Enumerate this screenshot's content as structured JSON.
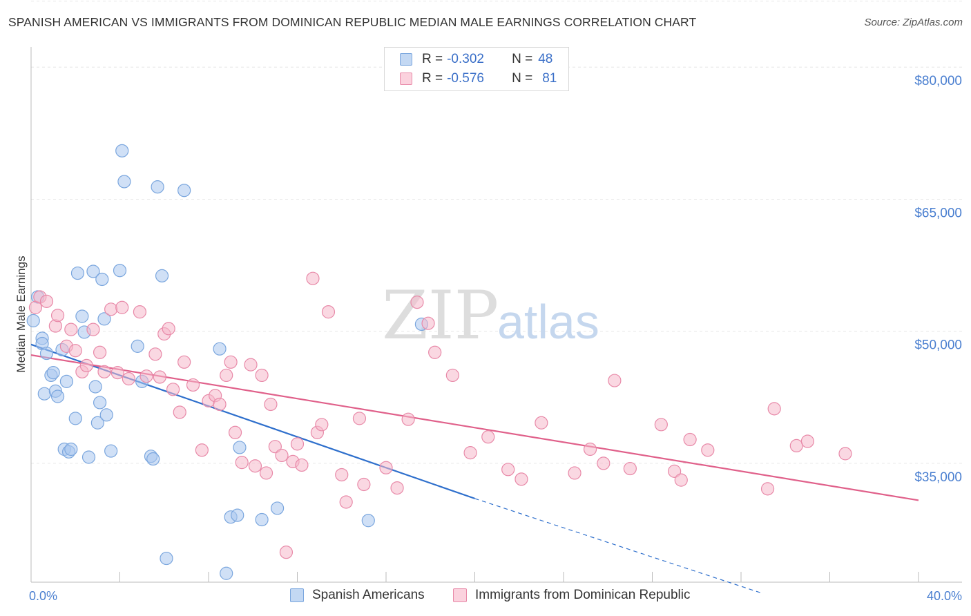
{
  "title": "SPANISH AMERICAN VS IMMIGRANTS FROM DOMINICAN REPUBLIC MEDIAN MALE EARNINGS CORRELATION CHART",
  "source": "Source: ZipAtlas.com",
  "watermark": {
    "zip": "ZIP",
    "atlas": "atlas"
  },
  "legend": {
    "series": [
      {
        "r_label": "R = ",
        "r_value": "-0.302",
        "n_label": "N = ",
        "n_value": "48"
      },
      {
        "r_label": "R = ",
        "r_value": "-0.576",
        "n_label": "N = ",
        "n_value": "81"
      }
    ]
  },
  "colors": {
    "blue_fill": "#aac7ee",
    "blue_stroke": "#7aa6de",
    "blue_line": "#2e6fcc",
    "pink_fill": "#f5b8cb",
    "pink_stroke": "#e889a8",
    "pink_line": "#e0608a",
    "tick_text": "#4a7fd0",
    "grid": "#e6e6e6"
  },
  "chart_data": {
    "type": "scatter",
    "title": "SPANISH AMERICAN VS IMMIGRANTS FROM DOMINICAN REPUBLIC MEDIAN MALE EARNINGS CORRELATION CHART",
    "xlabel": "",
    "ylabel": "Median Male Earnings",
    "xlim": [
      0,
      40
    ],
    "ylim": [
      21500,
      83000
    ],
    "x_tick_labels": [
      "0.0%",
      "40.0%"
    ],
    "y_ticks": [
      35000,
      50000,
      65000,
      80000
    ],
    "y_tick_labels": [
      "$35,000",
      "$50,000",
      "$65,000",
      "$80,000"
    ],
    "grid": true,
    "legend_placement": "top-center",
    "series": [
      {
        "name": "Spanish Americans",
        "color": "#aac7ee",
        "points": [
          [
            0.1,
            51200
          ],
          [
            0.3,
            53900
          ],
          [
            0.5,
            49200
          ],
          [
            0.5,
            48600
          ],
          [
            0.7,
            47500
          ],
          [
            0.9,
            45000
          ],
          [
            1.0,
            45300
          ],
          [
            0.6,
            42900
          ],
          [
            1.1,
            43200
          ],
          [
            1.2,
            42600
          ],
          [
            1.4,
            47900
          ],
          [
            1.6,
            44300
          ],
          [
            1.5,
            36600
          ],
          [
            1.7,
            36300
          ],
          [
            1.8,
            36600
          ],
          [
            2.0,
            40100
          ],
          [
            2.1,
            56600
          ],
          [
            2.3,
            51700
          ],
          [
            2.4,
            49900
          ],
          [
            2.6,
            35700
          ],
          [
            2.8,
            56800
          ],
          [
            2.9,
            43700
          ],
          [
            3.0,
            39600
          ],
          [
            3.1,
            41900
          ],
          [
            3.2,
            55900
          ],
          [
            3.3,
            51400
          ],
          [
            3.4,
            40500
          ],
          [
            3.6,
            36400
          ],
          [
            4.0,
            56900
          ],
          [
            4.1,
            70500
          ],
          [
            4.2,
            67000
          ],
          [
            4.8,
            48300
          ],
          [
            5.0,
            44300
          ],
          [
            5.4,
            35800
          ],
          [
            5.5,
            35500
          ],
          [
            5.7,
            66400
          ],
          [
            5.9,
            56300
          ],
          [
            6.1,
            24200
          ],
          [
            6.9,
            66000
          ],
          [
            8.5,
            48000
          ],
          [
            9.0,
            28900
          ],
          [
            9.3,
            29100
          ],
          [
            9.4,
            36800
          ],
          [
            8.8,
            22500
          ],
          [
            10.4,
            28600
          ],
          [
            11.1,
            29900
          ],
          [
            15.2,
            28500
          ],
          [
            17.6,
            50800
          ]
        ]
      },
      {
        "name": "Immigrants from Dominican Republic",
        "color": "#f5b8cb",
        "points": [
          [
            0.2,
            52700
          ],
          [
            0.4,
            53900
          ],
          [
            0.7,
            53400
          ],
          [
            1.1,
            50600
          ],
          [
            1.2,
            51800
          ],
          [
            1.6,
            48300
          ],
          [
            1.8,
            50200
          ],
          [
            2.0,
            47800
          ],
          [
            2.3,
            45400
          ],
          [
            2.5,
            46100
          ],
          [
            2.8,
            50200
          ],
          [
            3.1,
            47600
          ],
          [
            3.3,
            45400
          ],
          [
            3.6,
            52500
          ],
          [
            3.9,
            45300
          ],
          [
            4.1,
            52700
          ],
          [
            4.4,
            44600
          ],
          [
            4.9,
            52200
          ],
          [
            5.2,
            44900
          ],
          [
            5.6,
            47400
          ],
          [
            5.8,
            44800
          ],
          [
            6.0,
            49700
          ],
          [
            6.2,
            50300
          ],
          [
            6.4,
            43400
          ],
          [
            6.7,
            40800
          ],
          [
            6.9,
            46500
          ],
          [
            7.3,
            43900
          ],
          [
            7.7,
            36500
          ],
          [
            8.0,
            42100
          ],
          [
            8.3,
            42700
          ],
          [
            8.5,
            41700
          ],
          [
            8.8,
            45000
          ],
          [
            9.0,
            46500
          ],
          [
            9.2,
            38500
          ],
          [
            9.5,
            35100
          ],
          [
            9.9,
            46200
          ],
          [
            10.1,
            34700
          ],
          [
            10.4,
            45000
          ],
          [
            10.6,
            33900
          ],
          [
            10.8,
            41700
          ],
          [
            11.0,
            36900
          ],
          [
            11.3,
            35900
          ],
          [
            11.5,
            24900
          ],
          [
            11.8,
            35200
          ],
          [
            12.0,
            37200
          ],
          [
            12.2,
            34800
          ],
          [
            12.7,
            56000
          ],
          [
            12.9,
            38500
          ],
          [
            13.1,
            39400
          ],
          [
            13.4,
            52200
          ],
          [
            14.0,
            33700
          ],
          [
            14.2,
            30600
          ],
          [
            14.8,
            40100
          ],
          [
            15.0,
            32600
          ],
          [
            16.0,
            34500
          ],
          [
            16.5,
            32200
          ],
          [
            17.0,
            40000
          ],
          [
            17.4,
            53300
          ],
          [
            17.9,
            50900
          ],
          [
            18.2,
            47600
          ],
          [
            19.0,
            45000
          ],
          [
            19.8,
            36200
          ],
          [
            20.6,
            38000
          ],
          [
            21.5,
            34300
          ],
          [
            22.1,
            33200
          ],
          [
            23.0,
            39600
          ],
          [
            24.5,
            33900
          ],
          [
            25.2,
            36600
          ],
          [
            25.8,
            35000
          ],
          [
            26.3,
            44400
          ],
          [
            27.0,
            34400
          ],
          [
            28.4,
            39400
          ],
          [
            29.0,
            34100
          ],
          [
            29.3,
            33100
          ],
          [
            29.7,
            37700
          ],
          [
            30.5,
            36500
          ],
          [
            33.5,
            41200
          ],
          [
            33.2,
            32100
          ],
          [
            34.5,
            37000
          ],
          [
            35.0,
            37500
          ],
          [
            36.7,
            36100
          ]
        ]
      }
    ],
    "trendlines": [
      {
        "series": "Spanish Americans",
        "from": [
          0,
          48500
        ],
        "to": [
          20,
          31000
        ],
        "dashed_to": [
          33,
          20200
        ]
      },
      {
        "series": "Immigrants from Dominican Republic",
        "from": [
          0,
          47300
        ],
        "to": [
          40,
          30800
        ]
      }
    ]
  },
  "bottom_legend": [
    "Spanish Americans",
    "Immigrants from Dominican Republic"
  ]
}
